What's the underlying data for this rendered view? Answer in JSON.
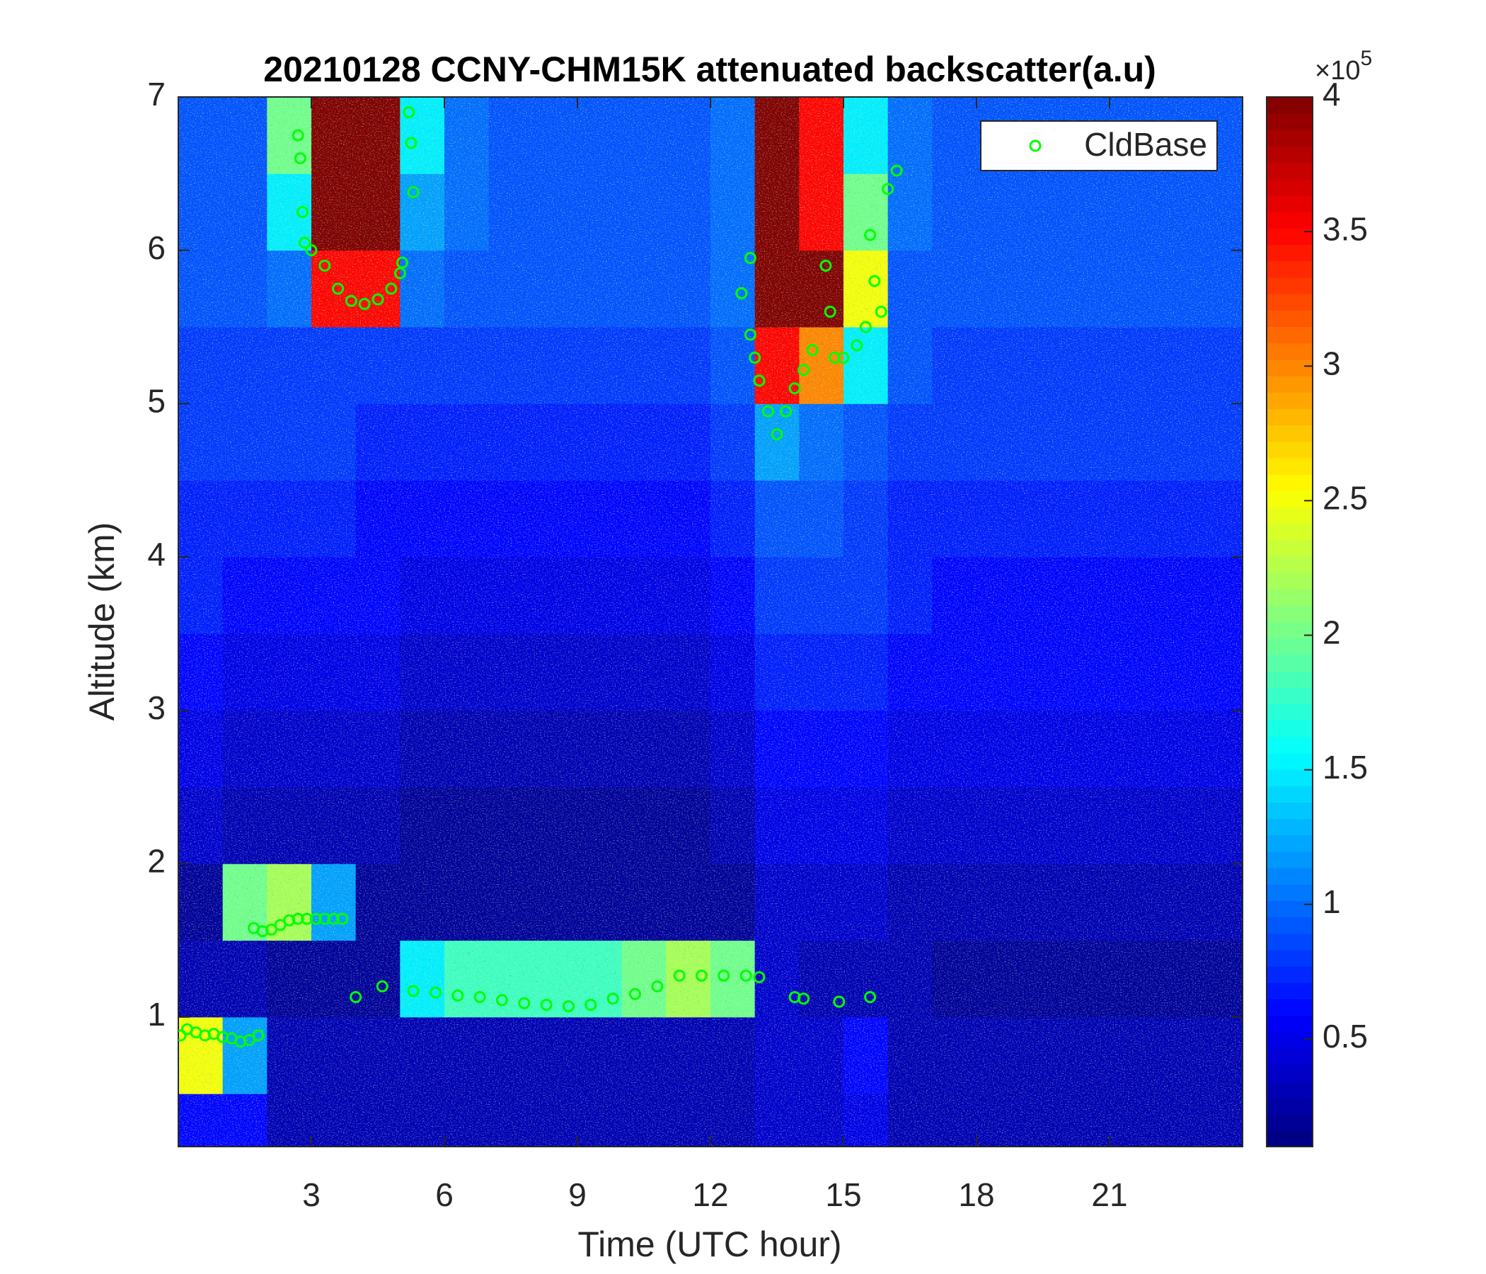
{
  "chart_data": {
    "type": "heatmap",
    "title": "20210128 CCNY-CHM15K attenuated backscatter(a.u)",
    "x_label": "Time (UTC hour)",
    "y_label": "Altitude (km)",
    "xlim": [
      0,
      24
    ],
    "ylim": [
      0.155,
      7
    ],
    "xticks": [
      3,
      6,
      9,
      12,
      15,
      18,
      21
    ],
    "yticks": [
      1,
      2,
      3,
      4,
      5,
      6,
      7
    ],
    "colormap": "jet",
    "clim": [
      0.1,
      4
    ],
    "cticks": [
      0.5,
      1,
      1.5,
      2,
      2.5,
      3,
      3.5,
      4
    ],
    "colorbar_exponent": {
      "base": "×10",
      "power": "5"
    },
    "xbins": [
      0,
      1,
      2,
      3,
      4,
      5,
      6,
      7,
      8,
      9,
      10,
      11,
      12,
      13,
      14,
      15,
      16,
      17,
      18,
      19,
      20,
      21,
      22,
      23,
      24
    ],
    "ybins": [
      0.155,
      0.5,
      1,
      1.5,
      2,
      2.5,
      3,
      3.5,
      4,
      4.5,
      5,
      5.5,
      6,
      6.5,
      7
    ],
    "z": [
      [
        0.6,
        0.6,
        0.3,
        0.3,
        0.3,
        0.3,
        0.3,
        0.3,
        0.3,
        0.3,
        0.3,
        0.3,
        0.3,
        0.4,
        0.4,
        0.5,
        0.3,
        0.3,
        0.3,
        0.3,
        0.3,
        0.3,
        0.3,
        0.3
      ],
      [
        2.5,
        1.2,
        0.3,
        0.3,
        0.3,
        0.3,
        0.3,
        0.3,
        0.3,
        0.3,
        0.3,
        0.3,
        0.3,
        0.4,
        0.4,
        0.6,
        0.3,
        0.3,
        0.3,
        0.3,
        0.3,
        0.3,
        0.3,
        0.3
      ],
      [
        0.3,
        0.3,
        0.2,
        0.2,
        0.2,
        1.5,
        1.8,
        1.8,
        1.8,
        1.8,
        2,
        2.2,
        2,
        0.4,
        0.3,
        0.3,
        0.3,
        0.2,
        0.2,
        0.2,
        0.2,
        0.2,
        0.2,
        0.2
      ],
      [
        0.2,
        2,
        2.2,
        1.2,
        0.2,
        0.2,
        0.2,
        0.2,
        0.2,
        0.2,
        0.2,
        0.2,
        0.2,
        0.4,
        0.4,
        0.4,
        0.3,
        0.3,
        0.3,
        0.3,
        0.3,
        0.3,
        0.3,
        0.3
      ],
      [
        0.4,
        0.3,
        0.3,
        0.3,
        0.3,
        0.2,
        0.2,
        0.2,
        0.2,
        0.2,
        0.2,
        0.2,
        0.3,
        0.5,
        0.5,
        0.5,
        0.4,
        0.4,
        0.4,
        0.4,
        0.4,
        0.4,
        0.4,
        0.4
      ],
      [
        0.5,
        0.4,
        0.4,
        0.4,
        0.4,
        0.3,
        0.3,
        0.3,
        0.3,
        0.3,
        0.3,
        0.3,
        0.4,
        0.6,
        0.6,
        0.6,
        0.5,
        0.5,
        0.5,
        0.5,
        0.5,
        0.5,
        0.5,
        0.5
      ],
      [
        0.6,
        0.5,
        0.5,
        0.5,
        0.5,
        0.4,
        0.4,
        0.4,
        0.4,
        0.4,
        0.4,
        0.4,
        0.5,
        0.7,
        0.7,
        0.7,
        0.6,
        0.6,
        0.6,
        0.6,
        0.6,
        0.6,
        0.6,
        0.6
      ],
      [
        0.7,
        0.6,
        0.6,
        0.6,
        0.6,
        0.5,
        0.5,
        0.5,
        0.5,
        0.5,
        0.5,
        0.5,
        0.6,
        0.8,
        0.8,
        0.8,
        0.7,
        0.6,
        0.6,
        0.6,
        0.6,
        0.6,
        0.6,
        0.6
      ],
      [
        0.7,
        0.7,
        0.7,
        0.7,
        0.6,
        0.6,
        0.6,
        0.6,
        0.6,
        0.6,
        0.6,
        0.6,
        0.7,
        0.9,
        0.9,
        0.8,
        0.7,
        0.7,
        0.7,
        0.7,
        0.7,
        0.7,
        0.7,
        0.7
      ],
      [
        0.8,
        0.8,
        0.8,
        0.8,
        0.7,
        0.7,
        0.7,
        0.7,
        0.7,
        0.7,
        0.7,
        0.7,
        0.8,
        1.2,
        1,
        0.9,
        0.8,
        0.8,
        0.8,
        0.8,
        0.8,
        0.8,
        0.8,
        0.8
      ],
      [
        0.8,
        0.8,
        0.8,
        0.8,
        0.8,
        0.8,
        0.8,
        0.8,
        0.8,
        0.8,
        0.8,
        0.8,
        0.9,
        3.5,
        3,
        1.5,
        0.9,
        0.8,
        0.8,
        0.8,
        0.8,
        0.8,
        0.8,
        0.8
      ],
      [
        0.9,
        0.9,
        1,
        3.5,
        3.5,
        1,
        0.9,
        0.9,
        0.9,
        0.9,
        0.9,
        0.9,
        1,
        4,
        4,
        2.5,
        0.9,
        0.9,
        0.9,
        0.9,
        0.9,
        0.9,
        0.9,
        0.9
      ],
      [
        0.9,
        0.9,
        1.5,
        4,
        4,
        1.2,
        1,
        0.9,
        0.9,
        0.9,
        0.9,
        0.9,
        1,
        4,
        3.5,
        2,
        1,
        0.9,
        0.9,
        0.9,
        0.9,
        0.9,
        0.9,
        0.9
      ],
      [
        0.9,
        0.9,
        2,
        4,
        4,
        1.5,
        1,
        0.9,
        0.9,
        0.9,
        0.9,
        0.9,
        1,
        4,
        3.5,
        1.5,
        1,
        0.9,
        0.9,
        0.9,
        0.9,
        0.9,
        0.9,
        0.9
      ]
    ],
    "legend": "upper right",
    "overlay": {
      "type": "scatter",
      "series": [
        {
          "name": "CldBase",
          "color": "#00ff00",
          "x": [
            0.05,
            0.2,
            0.4,
            0.6,
            0.8,
            1.0,
            1.2,
            1.4,
            1.6,
            1.8,
            1.7,
            1.9,
            2.1,
            2.3,
            2.5,
            2.7,
            2.9,
            3.1,
            3.3,
            3.5,
            3.7,
            4.0,
            4.6,
            5.3,
            5.8,
            6.3,
            6.8,
            7.3,
            7.8,
            8.3,
            8.8,
            9.3,
            9.8,
            10.3,
            10.8,
            11.3,
            11.8,
            12.3,
            12.8,
            13.1,
            13.9,
            14.1,
            14.9,
            15.6,
            2.7,
            2.75,
            2.8,
            2.85,
            3.0,
            3.3,
            3.6,
            3.9,
            4.2,
            4.5,
            4.8,
            5.0,
            5.05,
            5.2,
            5.25,
            5.3,
            12.7,
            12.9,
            12.9,
            13.0,
            13.1,
            13.3,
            13.5,
            13.7,
            13.9,
            14.1,
            14.3,
            14.6,
            14.7,
            14.8,
            15.0,
            15.3,
            15.5,
            15.6,
            15.7,
            15.85,
            16.0,
            16.2
          ],
          "y": [
            0.88,
            0.92,
            0.9,
            0.88,
            0.89,
            0.87,
            0.86,
            0.84,
            0.85,
            0.88,
            1.58,
            1.56,
            1.57,
            1.6,
            1.63,
            1.64,
            1.64,
            1.64,
            1.64,
            1.64,
            1.64,
            1.13,
            1.2,
            1.17,
            1.16,
            1.14,
            1.13,
            1.11,
            1.09,
            1.08,
            1.07,
            1.08,
            1.12,
            1.15,
            1.2,
            1.27,
            1.27,
            1.27,
            1.27,
            1.26,
            1.13,
            1.12,
            1.1,
            1.13,
            6.75,
            6.6,
            6.25,
            6.05,
            6.0,
            5.9,
            5.75,
            5.67,
            5.65,
            5.68,
            5.75,
            5.85,
            5.92,
            6.9,
            6.7,
            6.38,
            5.72,
            5.45,
            5.95,
            5.3,
            5.15,
            4.95,
            4.8,
            4.95,
            5.1,
            5.22,
            5.35,
            5.9,
            5.6,
            5.3,
            5.3,
            5.38,
            5.5,
            6.1,
            5.8,
            5.6,
            6.4,
            6.52
          ]
        }
      ]
    }
  }
}
